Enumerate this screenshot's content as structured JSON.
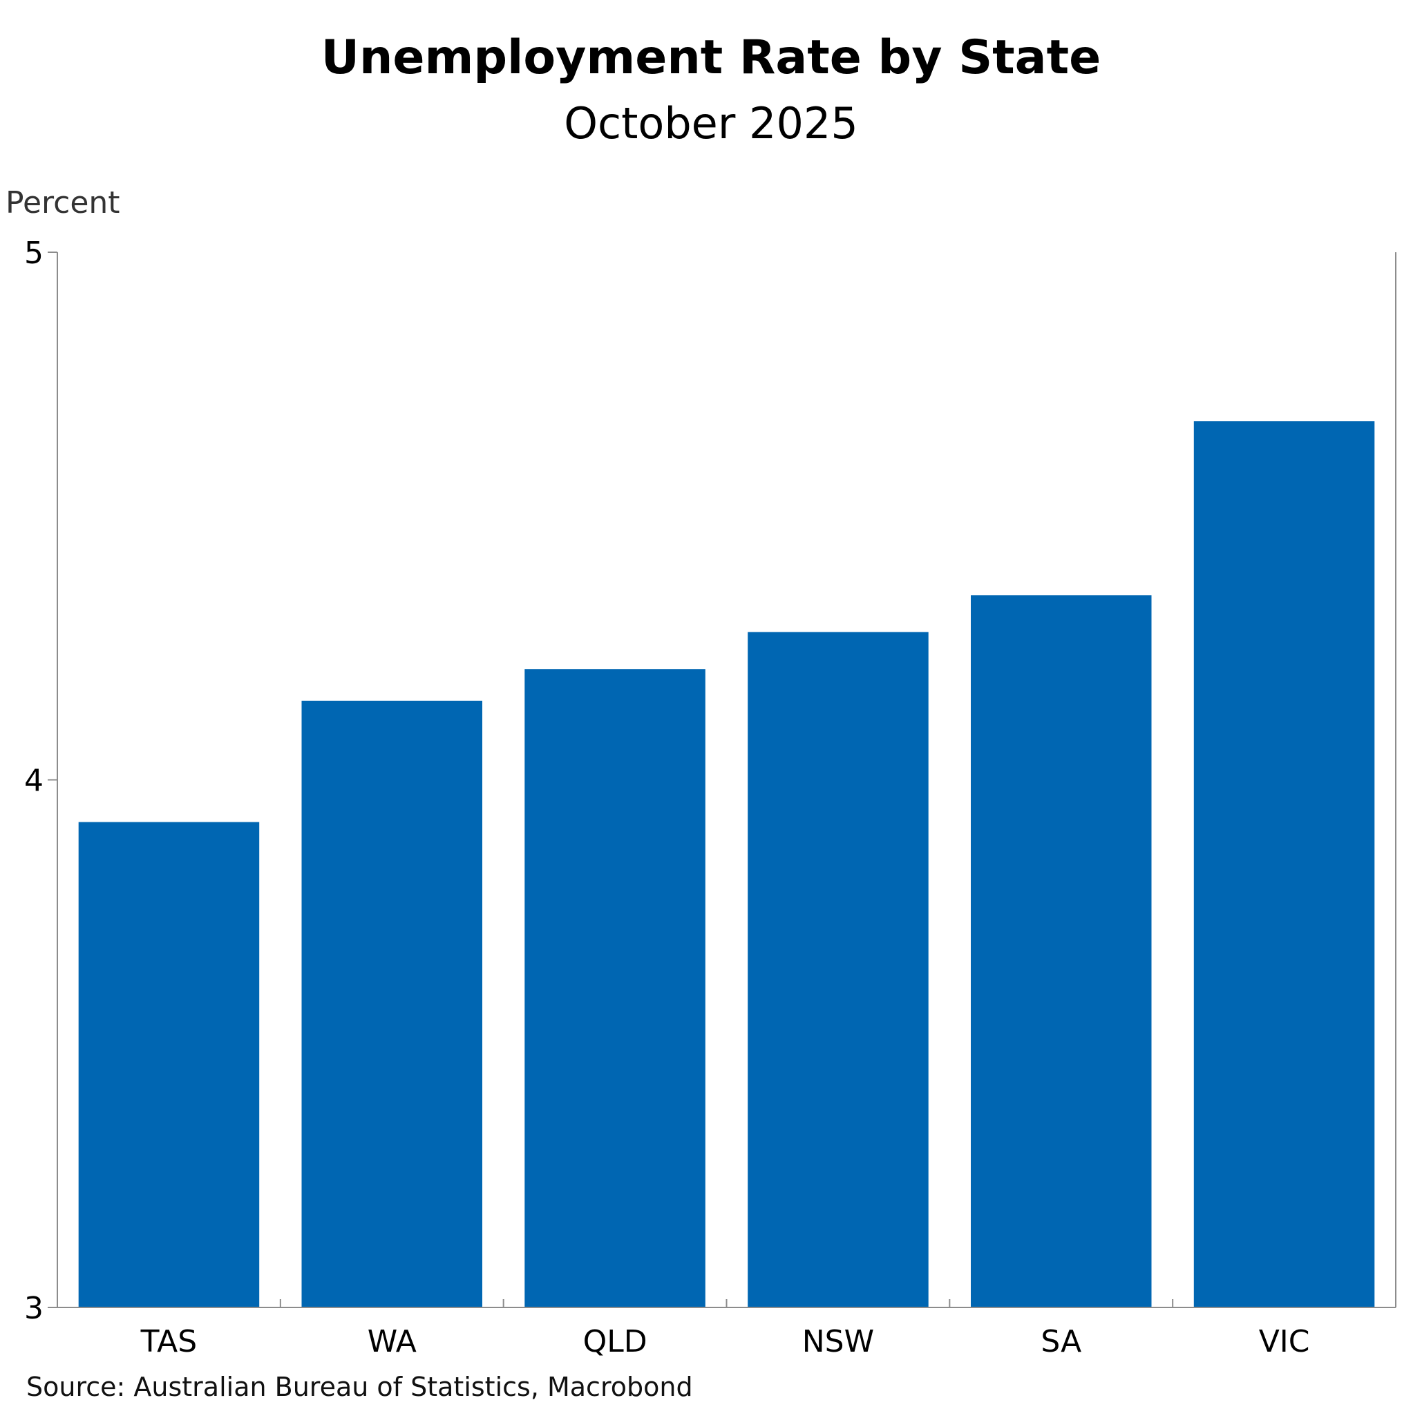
{
  "title": "Unemployment Rate by State",
  "subtitle": "October 2025",
  "source": "Source: Australian Bureau of Statistics, Macrobond",
  "colors": {
    "bar": "#0066B2",
    "axis": "#8c8c8c",
    "text": "#000000",
    "ylabel_text": "#333333"
  },
  "chart_data": {
    "type": "bar",
    "title": "Unemployment Rate by State",
    "subtitle": "October 2025",
    "xlabel": "",
    "ylabel": "Percent",
    "categories": [
      "TAS",
      "WA",
      "QLD",
      "NSW",
      "SA",
      "VIC"
    ],
    "values": [
      3.92,
      4.15,
      4.21,
      4.28,
      4.35,
      4.68
    ],
    "ylim": [
      3,
      5
    ],
    "yticks": [
      "3",
      "4",
      "5"
    ],
    "grid": false,
    "legend": "none"
  }
}
